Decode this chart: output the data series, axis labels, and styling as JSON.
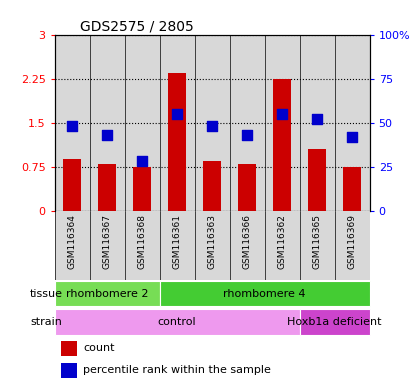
{
  "title": "GDS2575 / 2805",
  "samples": [
    "GSM116364",
    "GSM116367",
    "GSM116368",
    "GSM116361",
    "GSM116363",
    "GSM116366",
    "GSM116362",
    "GSM116365",
    "GSM116369"
  ],
  "counts": [
    0.88,
    0.8,
    0.75,
    2.35,
    0.85,
    0.8,
    2.25,
    1.05,
    0.75
  ],
  "percentile_ranks": [
    48,
    43,
    28,
    55,
    48,
    43,
    55,
    52,
    42
  ],
  "ylim_left": [
    0,
    3
  ],
  "ylim_right": [
    0,
    100
  ],
  "yticks_left": [
    0,
    0.75,
    1.5,
    2.25,
    3
  ],
  "ytick_labels_left": [
    "0",
    "0.75",
    "1.5",
    "2.25",
    "3"
  ],
  "yticks_right": [
    0,
    25,
    50,
    75,
    100
  ],
  "ytick_labels_right": [
    "0",
    "25",
    "50",
    "75",
    "100%"
  ],
  "bar_color": "#cc0000",
  "dot_color": "#0000cc",
  "dot_size": 50,
  "tissue_groups": [
    {
      "label": "rhombomere 2",
      "start": 0,
      "end": 3,
      "color": "#77dd55"
    },
    {
      "label": "rhombomere 4",
      "start": 3,
      "end": 9,
      "color": "#44cc33"
    }
  ],
  "strain_groups": [
    {
      "label": "control",
      "start": 0,
      "end": 7,
      "color": "#ee99ee"
    },
    {
      "label": "Hoxb1a deficient",
      "start": 7,
      "end": 9,
      "color": "#cc44cc"
    }
  ],
  "tissue_label": "tissue",
  "strain_label": "strain",
  "legend_count": "count",
  "legend_pct": "percentile rank within the sample",
  "col_bg_color": "#d8d8d8",
  "plot_bg": "#ffffff",
  "grid_color": "#000000",
  "spine_color": "#000000"
}
